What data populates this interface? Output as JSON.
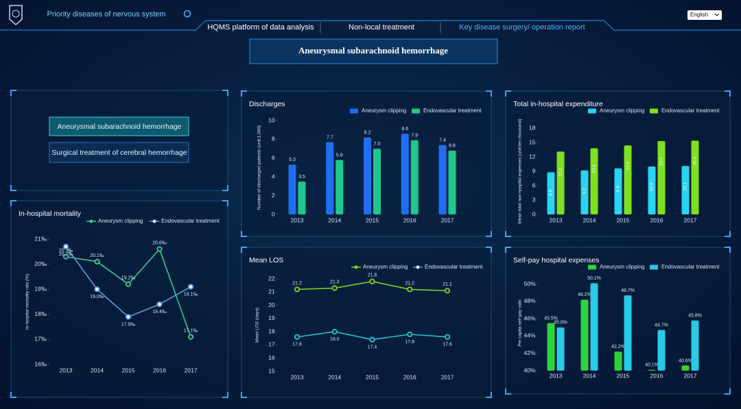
{
  "header": {
    "title": "Priority diseases of nervous system",
    "nav": [
      "HQMS platform of data analysis",
      "Non-local treatment",
      "Key disease surgery/ operation report"
    ],
    "language": "English",
    "page_title": "Aneurysmal subarachnoid hemorrhage"
  },
  "menu": [
    "Aneurysmal subarachnoid hemorrhage",
    "Surgical treatment of cerebral hemorrhage"
  ],
  "chart_data": [
    {
      "type": "line",
      "title": "In-hospital mortality",
      "y_label": "In-hospital mortality rate (%)",
      "categories": [
        "2013",
        "2014",
        "2015",
        "2016",
        "2017"
      ],
      "series": [
        {
          "name": "Aneurysm clipping",
          "color": "#3bc995",
          "values": [
            20.3,
            20.1,
            19.2,
            20.6,
            17.1
          ],
          "value_labels": [
            "20.3‰",
            "20.1‰",
            "19.2‰",
            "20.6‰",
            "17.1‰"
          ]
        },
        {
          "name": "Endovascular treatment",
          "color": "#5a9fe0",
          "values": [
            20.7,
            19.0,
            17.9,
            18.4,
            19.1
          ],
          "value_labels": [
            "20.7‰",
            "19.0‰",
            "17.9‰",
            "18.4‰",
            "19.1‰"
          ]
        }
      ],
      "ylim": [
        16,
        21
      ],
      "yticks": [
        {
          "value": 16,
          "label": "16‰"
        },
        {
          "value": 17,
          "label": "17‰"
        },
        {
          "value": 18,
          "label": "18‰"
        },
        {
          "value": 19,
          "label": "19‰"
        },
        {
          "value": 20,
          "label": "20‰"
        },
        {
          "value": 21,
          "label": "21‰"
        }
      ]
    },
    {
      "type": "bar",
      "title": "Discharges",
      "y_label": "Number of discharged patients (unit:1,000)",
      "categories": [
        "2013",
        "2014",
        "2015",
        "2016",
        "2017"
      ],
      "series": [
        {
          "name": "Aneurysm clipping",
          "color": "#1f6ff2",
          "values": [
            5.3,
            7.7,
            8.2,
            8.6,
            7.4
          ],
          "value_labels": [
            "5.3",
            "7.7",
            "8.2",
            "8.6",
            "7.4"
          ]
        },
        {
          "name": "Endovascular treatment",
          "color": "#1dc98e",
          "values": [
            3.5,
            5.8,
            7.0,
            7.9,
            6.8
          ],
          "value_labels": [
            "3.5",
            "5.8",
            "7.0",
            "7.9",
            "6.8"
          ]
        }
      ],
      "ylim": [
        0,
        10
      ],
      "yticks": [
        0,
        2,
        4,
        6,
        8,
        10
      ]
    },
    {
      "type": "line",
      "title": "Mean LOS",
      "y_label": "Mean LOS (days)",
      "categories": [
        "2013",
        "2014",
        "2015",
        "2016",
        "2017"
      ],
      "series": [
        {
          "name": "Aneurysm clipping",
          "color": "#7ed321",
          "values": [
            21.2,
            21.3,
            21.8,
            21.2,
            21.1
          ],
          "value_labels": [
            "21.2",
            "21.3",
            "21.8",
            "21.2",
            "21.1"
          ]
        },
        {
          "name": "Endovascular treatment",
          "color": "#22c4d4",
          "values": [
            17.6,
            18.0,
            17.4,
            17.8,
            17.6
          ],
          "value_labels": [
            "17.6",
            "18.0",
            "17.4",
            "17.8",
            "17.6"
          ]
        }
      ],
      "ylim": [
        15,
        22
      ],
      "yticks": [
        15,
        16,
        17,
        18,
        19,
        20,
        21,
        22
      ]
    },
    {
      "type": "bar",
      "title": "Total in-hospital expenditure",
      "y_label": "Mean total non-hospital expenses (unit:ten thousand)",
      "categories": [
        "2013",
        "2014",
        "2015",
        "2016",
        "2017"
      ],
      "series": [
        {
          "name": "Aneurysm clipping",
          "color": "#2ad3f0",
          "values": [
            8.8,
            9.2,
            9.6,
            10.0,
            10.1
          ],
          "value_labels": [
            "8.8",
            "9.2",
            "9.6",
            "10.0",
            "10.1"
          ]
        },
        {
          "name": "Endovascular treatment",
          "color": "#7fe01e",
          "values": [
            13.1,
            13.8,
            14.4,
            15.3,
            15.4
          ],
          "value_labels": [
            "13.1",
            "13.8",
            "14.4",
            "15.3",
            "15.4"
          ]
        }
      ],
      "ylim": [
        0,
        18
      ],
      "yticks": [
        0,
        3,
        6,
        9,
        12,
        15,
        18
      ]
    },
    {
      "type": "bar",
      "title": "Self-pay hospital expenses",
      "y_label": "Per capita self-pay ratio",
      "categories": [
        "2013",
        "2014",
        "2015",
        "2016",
        "2017"
      ],
      "series": [
        {
          "name": "Aneurysm clipping",
          "color": "#2fd33c",
          "values": [
            45.5,
            48.2,
            42.2,
            40.1,
            40.6
          ],
          "value_labels": [
            "45.5%",
            "48.2%",
            "42.2%",
            "40.1%",
            "40.6%"
          ]
        },
        {
          "name": "Endovascular treatment",
          "color": "#29c9e8",
          "values": [
            45.0,
            50.1,
            48.7,
            44.7,
            45.8
          ],
          "value_labels": [
            "45.0%",
            "50.1%",
            "48.7%",
            "44.7%",
            "45.8%"
          ]
        }
      ],
      "ylim": [
        40,
        51
      ],
      "yticks": [
        {
          "value": 40,
          "label": "40%"
        },
        {
          "value": 42,
          "label": "42%"
        },
        {
          "value": 44,
          "label": "44%"
        },
        {
          "value": 46,
          "label": "46%"
        },
        {
          "value": 48,
          "label": "48%"
        },
        {
          "value": 50,
          "label": "50%"
        }
      ]
    }
  ]
}
